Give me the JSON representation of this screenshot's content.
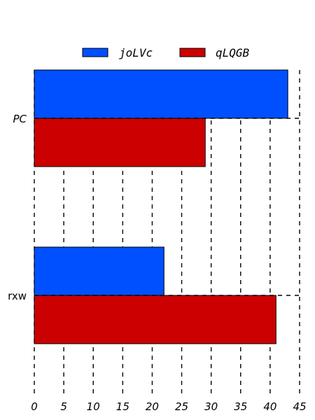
{
  "chart_data": {
    "type": "bar",
    "orientation": "horizontal",
    "categories": [
      "PC",
      "rxw"
    ],
    "category_label_styles": [
      "italic",
      "normal"
    ],
    "series": [
      {
        "name": "joLVc",
        "values": [
          43,
          22
        ],
        "color": "#0050ff"
      },
      {
        "name": "qLQGB",
        "values": [
          29,
          41
        ],
        "color": "#cc0000"
      }
    ],
    "xlim": [
      0,
      45
    ],
    "xticks": [
      "0",
      "5",
      "10",
      "15",
      "20",
      "25",
      "30",
      "35",
      "40",
      "45"
    ],
    "grid": "vertical dashed",
    "legend_position": "top-center"
  }
}
